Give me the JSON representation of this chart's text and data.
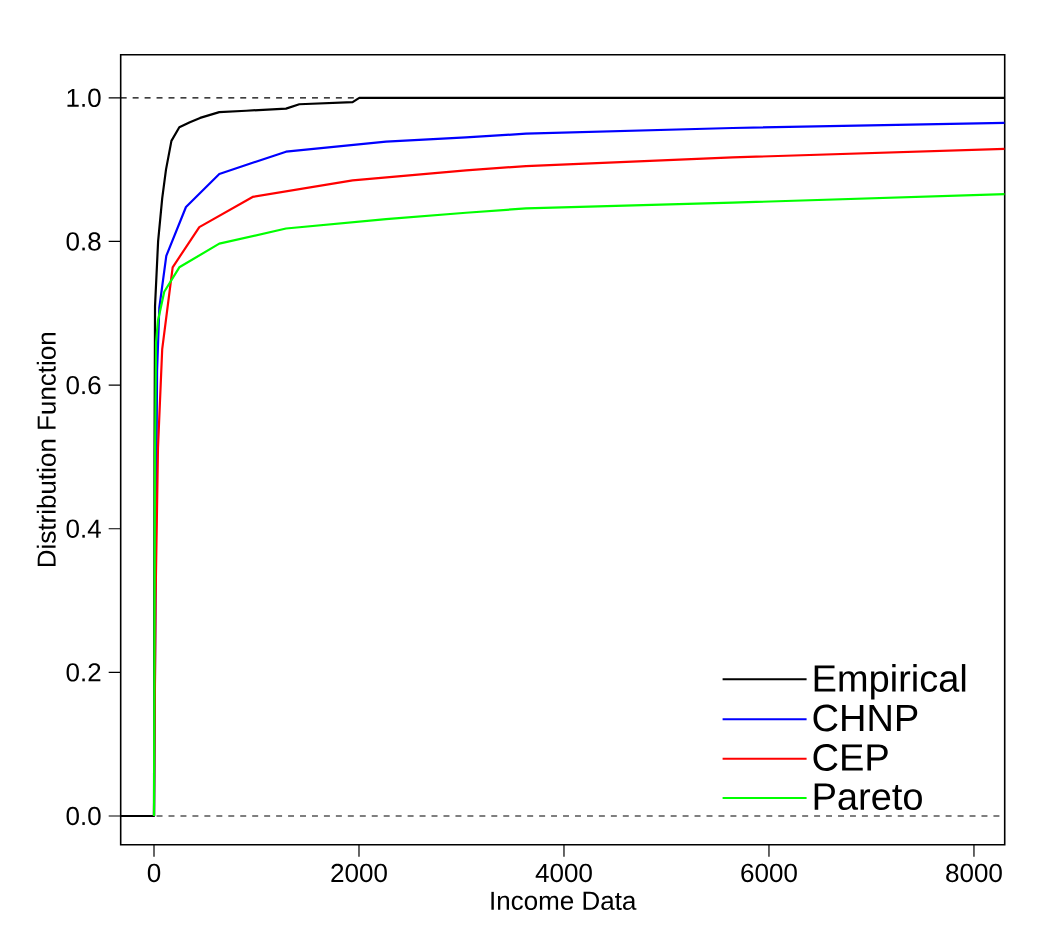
{
  "chart_data": {
    "type": "line",
    "xlabel": "Income Data",
    "ylabel": "Distribution Function",
    "xlim": [
      -325,
      8300
    ],
    "ylim": [
      -0.04,
      1.06
    ],
    "xticks": [
      0,
      2000,
      4000,
      6000,
      8000
    ],
    "yticks": [
      {
        "value": 0,
        "label": "0.0"
      },
      {
        "value": 0.2,
        "label": "0.2"
      },
      {
        "value": 0.4,
        "label": "0.4"
      },
      {
        "value": 0.6,
        "label": "0.6"
      },
      {
        "value": 0.8,
        "label": "0.8"
      },
      {
        "value": 1,
        "label": "1.0"
      }
    ],
    "grid": false,
    "legend": "bottom right",
    "line_style": "solid",
    "ref_lines": [
      {
        "axis": "y",
        "value": 0,
        "color": "#000000",
        "line_style": "dashed"
      },
      {
        "axis": "y",
        "value": 1,
        "color": "#000000",
        "line_style": "dashed"
      }
    ],
    "series": [
      {
        "name": "Empirical",
        "color": "#000000",
        "x": [
          -325,
          0,
          5,
          10,
          40,
          80,
          117,
          170,
          247,
          350,
          450,
          637,
          900,
          1288,
          1418,
          1938,
          2003,
          8300
        ],
        "values": [
          0,
          0,
          0.5,
          0.71,
          0.8,
          0.86,
          0.9,
          0.94,
          0.959,
          0.966,
          0.972,
          0.98,
          0.982,
          0.985,
          0.991,
          0.994,
          1,
          1
        ]
      },
      {
        "name": "CHNP",
        "color": "#0000ff",
        "x": [
          0,
          30,
          52,
          120,
          312,
          637,
          1288,
          2264,
          3044,
          3629,
          5645,
          8300
        ],
        "values": [
          0,
          0.62,
          0.708,
          0.78,
          0.848,
          0.894,
          0.925,
          0.939,
          0.945,
          0.95,
          0.958,
          0.965
        ]
      },
      {
        "name": "CEP",
        "color": "#ff0000",
        "x": [
          0,
          15,
          39,
          80,
          182,
          442,
          962,
          1938,
          3044,
          3629,
          5645,
          8300
        ],
        "values": [
          0,
          0.3,
          0.513,
          0.65,
          0.764,
          0.82,
          0.862,
          0.885,
          0.899,
          0.905,
          0.917,
          0.929
        ]
      },
      {
        "name": "Pareto",
        "color": "#00ff00",
        "x": [
          0,
          10,
          20,
          39,
          100,
          247,
          637,
          1288,
          2264,
          3044,
          3629,
          5645,
          8300
        ],
        "values": [
          0,
          0.5,
          0.66,
          0.69,
          0.73,
          0.764,
          0.797,
          0.818,
          0.831,
          0.84,
          0.846,
          0.854,
          0.866
        ]
      }
    ]
  }
}
